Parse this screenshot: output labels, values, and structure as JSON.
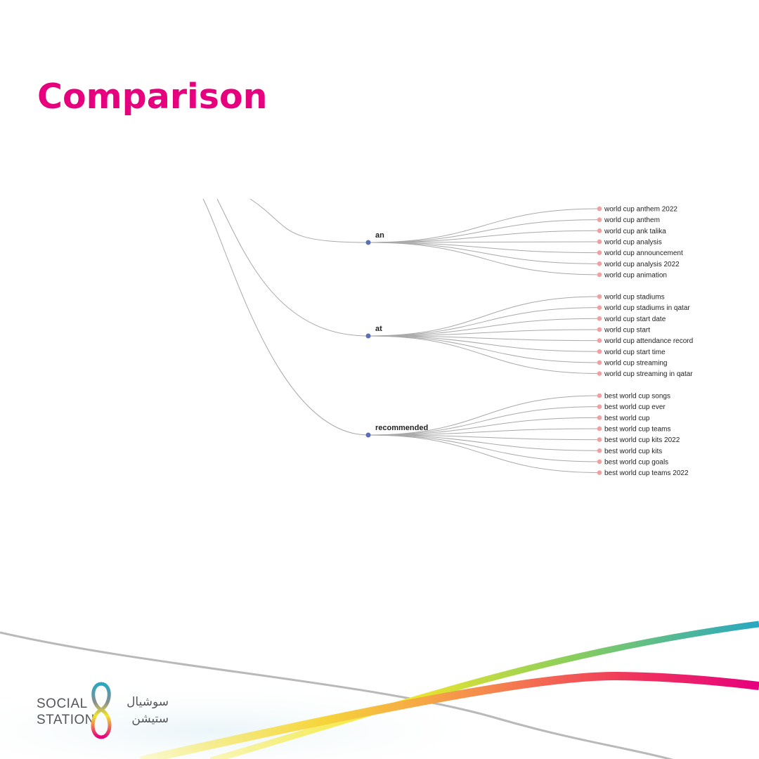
{
  "title": "Comparison",
  "colors": {
    "title": "#e6007e",
    "branch_node": "#5b6fb5",
    "leaf_node": "#f0a0a0",
    "link": "#a9a9a9",
    "text": "#222222"
  },
  "tree": {
    "branches": [
      {
        "label": "an",
        "leaves": [
          "world cup anthem 2022",
          "world cup anthem",
          "world cup ank talika",
          "world cup analysis",
          "world cup announcement",
          "world cup analysis 2022",
          "world cup animation"
        ]
      },
      {
        "label": "at",
        "leaves": [
          "world cup stadiums",
          "world cup stadiums in qatar",
          "world cup start date",
          "world cup start",
          "world cup attendance record",
          "world cup start time",
          "world cup streaming",
          "world cup streaming in qatar"
        ]
      },
      {
        "label": "recommended",
        "leaves": [
          "best world cup songs",
          "best world cup ever",
          "best world cup",
          "best world cup teams",
          "best world cup kits 2022",
          "best world cup kits",
          "best world cup goals",
          "best world cup teams 2022"
        ]
      }
    ]
  },
  "logo": {
    "line1": "SOCIAL",
    "line2": "STATION",
    "ar_line1": "سوشيال",
    "ar_line2": "ستيشن"
  }
}
